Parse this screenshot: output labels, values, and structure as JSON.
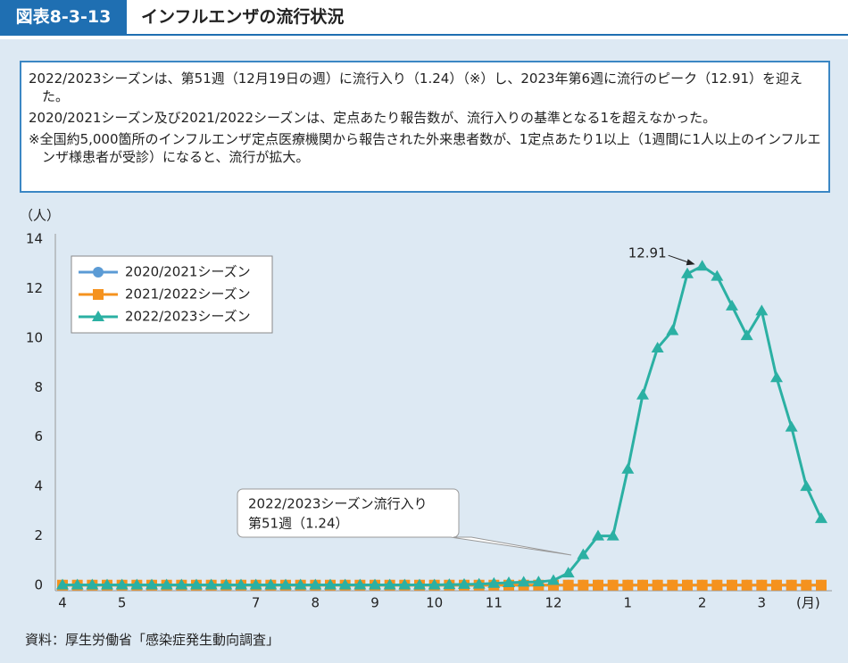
{
  "header": {
    "figure_id": "図表8-3-13",
    "title": "インフルエンザの流行状況"
  },
  "notes": [
    "2022/2023シーズンは、第51週（12月19日の週）に流行入り（1.24）（※）し、2023年第6週に流行のピーク（12.91）を迎えた。",
    "2020/2021シーズン及び2021/2022シーズンは、定点あたり報告数が、流行入りの基準となる1を超えなかった。",
    "※全国約5,000箇所のインフルエンザ定点医療機関から報告された外来患者数が、1定点あたり1以上（1週間に1人以上のインフルエンザ様患者が受診）になると、流行が拡大。"
  ],
  "source": "資料：厚生労働省「感染症発生動向調査」",
  "chart_data": {
    "type": "line",
    "y_label": "（人）",
    "x_label": "(月)",
    "categories": [
      "4",
      null,
      null,
      null,
      "5",
      null,
      null,
      null,
      null,
      null,
      null,
      null,
      null,
      "7",
      null,
      null,
      null,
      "8",
      null,
      null,
      null,
      "9",
      null,
      null,
      null,
      "10",
      null,
      null,
      null,
      "11",
      null,
      null,
      null,
      "12",
      null,
      null,
      null,
      null,
      "1",
      null,
      null,
      null,
      null,
      "2",
      null,
      null,
      null,
      "3",
      null,
      null,
      null,
      null
    ],
    "series": [
      {
        "name": "2020/2021シーズン",
        "color": "#5b9bd5",
        "marker": "circle",
        "values": [
          0.01,
          0.01,
          0.01,
          0.01,
          0.01,
          0.01,
          0.01,
          0.01,
          0.01,
          0.01,
          0.01,
          0.01,
          0.01,
          0.01,
          0.01,
          0.01,
          0.01,
          0.01,
          0.01,
          0.01,
          0.01,
          0.01,
          0.01,
          0.01,
          0.01,
          0.01,
          0.01,
          0.01,
          0.01,
          0.01,
          0.01,
          0.01,
          0.01,
          0.01,
          0.01,
          0.01,
          0.01,
          0.01,
          0.01,
          0.01,
          0.01,
          0.01,
          0.01,
          0.01,
          0.01,
          0.01,
          0.01,
          0.01,
          0.01,
          0.01,
          0.01,
          0.01
        ]
      },
      {
        "name": "2021/2022シーズン",
        "color": "#f5921e",
        "marker": "square",
        "values": [
          0.01,
          0.01,
          0.01,
          0.01,
          0.01,
          0.01,
          0.01,
          0.01,
          0.01,
          0.01,
          0.01,
          0.01,
          0.01,
          0.01,
          0.01,
          0.01,
          0.01,
          0.01,
          0.01,
          0.01,
          0.01,
          0.01,
          0.01,
          0.01,
          0.01,
          0.01,
          0.01,
          0.01,
          0.01,
          0.01,
          0.01,
          0.01,
          0.01,
          0.01,
          0.01,
          0.01,
          0.01,
          0.01,
          0.01,
          0.01,
          0.01,
          0.01,
          0.01,
          0.01,
          0.01,
          0.01,
          0.01,
          0.01,
          0.01,
          0.01,
          0.01,
          0.01
        ]
      },
      {
        "name": "2022/2023シーズン",
        "color": "#2bb0a3",
        "marker": "triangle",
        "values": [
          0.02,
          0.02,
          0.02,
          0.02,
          0.02,
          0.02,
          0.02,
          0.02,
          0.02,
          0.02,
          0.02,
          0.02,
          0.02,
          0.02,
          0.02,
          0.02,
          0.02,
          0.02,
          0.02,
          0.02,
          0.02,
          0.02,
          0.02,
          0.02,
          0.02,
          0.02,
          0.03,
          0.04,
          0.05,
          0.08,
          0.11,
          0.13,
          0.14,
          0.2,
          0.5,
          1.24,
          2.0,
          2.0,
          4.7,
          7.7,
          9.6,
          10.3,
          12.6,
          12.91,
          12.5,
          11.3,
          10.1,
          11.1,
          8.4,
          6.4,
          4.0,
          2.7
        ]
      }
    ],
    "peak_label_index": 43,
    "callout": [
      "2022/2023シーズン流行入り",
      "第51週（1.24）"
    ],
    "ylim": [
      0,
      14
    ],
    "yticks": [
      0,
      2,
      4,
      6,
      8,
      10,
      12,
      14
    ],
    "grid": false,
    "legend": "upper left"
  }
}
